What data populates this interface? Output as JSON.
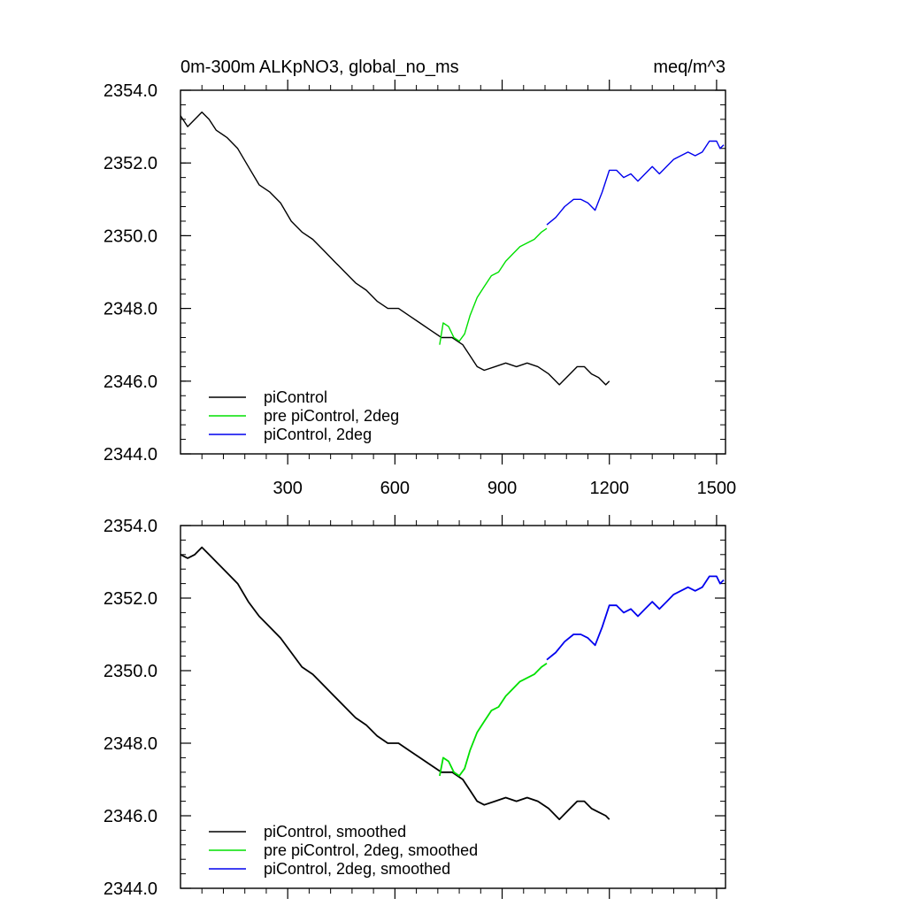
{
  "chart_data": [
    {
      "type": "line",
      "title": "0m-300m ALKpNO3, global_no_ms",
      "units": "meq/m^3",
      "xlabel": "",
      "ylabel": "",
      "xlim": [
        0,
        1525
      ],
      "ylim": [
        2344.0,
        2354.0
      ],
      "xticks": [
        300,
        600,
        900,
        1200,
        1500
      ],
      "xtick_labels": [
        "300",
        "600",
        "900",
        "1200",
        "1500"
      ],
      "yticks": [
        2344.0,
        2346.0,
        2348.0,
        2350.0,
        2352.0,
        2354.0
      ],
      "ytick_labels": [
        "2344.0",
        "2346.0",
        "2348.0",
        "2350.0",
        "2352.0",
        "2354.0"
      ],
      "legend_position": "bottom-left",
      "series": [
        {
          "name": "piControl",
          "color": "#000000",
          "x": [
            0,
            20,
            40,
            60,
            80,
            100,
            130,
            160,
            190,
            220,
            250,
            280,
            310,
            340,
            370,
            400,
            430,
            460,
            490,
            520,
            550,
            580,
            610,
            640,
            670,
            700,
            730,
            760,
            790,
            810,
            830,
            850,
            880,
            910,
            940,
            970,
            1000,
            1030,
            1060,
            1090,
            1110,
            1130,
            1150,
            1170,
            1190,
            1200
          ],
          "y": [
            2353.3,
            2353.0,
            2353.2,
            2353.4,
            2353.2,
            2352.9,
            2352.7,
            2352.4,
            2351.9,
            2351.4,
            2351.2,
            2350.9,
            2350.4,
            2350.1,
            2349.9,
            2349.6,
            2349.3,
            2349.0,
            2348.7,
            2348.5,
            2348.2,
            2348.0,
            2348.0,
            2347.8,
            2347.6,
            2347.4,
            2347.2,
            2347.2,
            2347.0,
            2346.7,
            2346.4,
            2346.3,
            2346.4,
            2346.5,
            2346.4,
            2346.5,
            2346.4,
            2346.2,
            2345.9,
            2346.2,
            2346.4,
            2346.4,
            2346.2,
            2346.1,
            2345.9,
            2346.0
          ]
        },
        {
          "name": "pre piControl, 2deg",
          "color": "#00e000",
          "x": [
            725,
            735,
            750,
            765,
            780,
            795,
            810,
            830,
            850,
            870,
            890,
            910,
            930,
            950,
            970,
            990,
            1010,
            1025
          ],
          "y": [
            2347.0,
            2347.6,
            2347.5,
            2347.2,
            2347.1,
            2347.3,
            2347.8,
            2348.3,
            2348.6,
            2348.9,
            2349.0,
            2349.3,
            2349.5,
            2349.7,
            2349.8,
            2349.9,
            2350.1,
            2350.2
          ]
        },
        {
          "name": "piControl, 2deg",
          "color": "#0000ee",
          "x": [
            1025,
            1050,
            1075,
            1100,
            1120,
            1140,
            1160,
            1180,
            1200,
            1220,
            1240,
            1260,
            1280,
            1300,
            1320,
            1340,
            1360,
            1380,
            1400,
            1420,
            1440,
            1460,
            1480,
            1500,
            1510,
            1520
          ],
          "y": [
            2350.3,
            2350.5,
            2350.8,
            2351.0,
            2351.0,
            2350.9,
            2350.7,
            2351.2,
            2351.8,
            2351.8,
            2351.6,
            2351.7,
            2351.5,
            2351.7,
            2351.9,
            2351.7,
            2351.9,
            2352.1,
            2352.2,
            2352.3,
            2352.2,
            2352.3,
            2352.6,
            2352.6,
            2352.4,
            2352.5
          ]
        }
      ]
    },
    {
      "type": "line",
      "title": "",
      "xlabel": "",
      "ylabel": "",
      "xlim": [
        0,
        1525
      ],
      "ylim": [
        2344.0,
        2354.0
      ],
      "xticks": [
        300,
        600,
        900,
        1200,
        1500
      ],
      "yticks": [
        2344.0,
        2346.0,
        2348.0,
        2350.0,
        2352.0,
        2354.0
      ],
      "ytick_labels": [
        "2344.0",
        "2346.0",
        "2348.0",
        "2350.0",
        "2352.0",
        "2354.0"
      ],
      "legend_position": "bottom-left",
      "series": [
        {
          "name": "piControl, smoothed",
          "color": "#000000",
          "x": [
            0,
            20,
            40,
            60,
            80,
            100,
            130,
            160,
            190,
            220,
            250,
            280,
            310,
            340,
            370,
            400,
            430,
            460,
            490,
            520,
            550,
            580,
            610,
            640,
            670,
            700,
            730,
            760,
            790,
            810,
            830,
            850,
            880,
            910,
            940,
            970,
            1000,
            1030,
            1060,
            1090,
            1110,
            1130,
            1150,
            1170,
            1190,
            1200
          ],
          "y": [
            2353.2,
            2353.1,
            2353.2,
            2353.4,
            2353.2,
            2353.0,
            2352.7,
            2352.4,
            2351.9,
            2351.5,
            2351.2,
            2350.9,
            2350.5,
            2350.1,
            2349.9,
            2349.6,
            2349.3,
            2349.0,
            2348.7,
            2348.5,
            2348.2,
            2348.0,
            2348.0,
            2347.8,
            2347.6,
            2347.4,
            2347.2,
            2347.2,
            2347.0,
            2346.7,
            2346.4,
            2346.3,
            2346.4,
            2346.5,
            2346.4,
            2346.5,
            2346.4,
            2346.2,
            2345.9,
            2346.2,
            2346.4,
            2346.4,
            2346.2,
            2346.1,
            2346.0,
            2345.9
          ]
        },
        {
          "name": "pre piControl, 2deg, smoothed",
          "color": "#00e000",
          "x": [
            725,
            735,
            750,
            765,
            780,
            795,
            810,
            830,
            850,
            870,
            890,
            910,
            930,
            950,
            970,
            990,
            1010,
            1025
          ],
          "y": [
            2347.1,
            2347.6,
            2347.5,
            2347.2,
            2347.1,
            2347.3,
            2347.8,
            2348.3,
            2348.6,
            2348.9,
            2349.0,
            2349.3,
            2349.5,
            2349.7,
            2349.8,
            2349.9,
            2350.1,
            2350.2
          ]
        },
        {
          "name": "piControl, 2deg, smoothed",
          "color": "#0000ee",
          "x": [
            1025,
            1050,
            1075,
            1100,
            1120,
            1140,
            1160,
            1180,
            1200,
            1220,
            1240,
            1260,
            1280,
            1300,
            1320,
            1340,
            1360,
            1380,
            1400,
            1420,
            1440,
            1460,
            1480,
            1500,
            1510,
            1520
          ],
          "y": [
            2350.3,
            2350.5,
            2350.8,
            2351.0,
            2351.0,
            2350.9,
            2350.7,
            2351.2,
            2351.8,
            2351.8,
            2351.6,
            2351.7,
            2351.5,
            2351.7,
            2351.9,
            2351.7,
            2351.9,
            2352.1,
            2352.2,
            2352.3,
            2352.2,
            2352.3,
            2352.6,
            2352.6,
            2352.4,
            2352.5
          ]
        }
      ]
    }
  ]
}
